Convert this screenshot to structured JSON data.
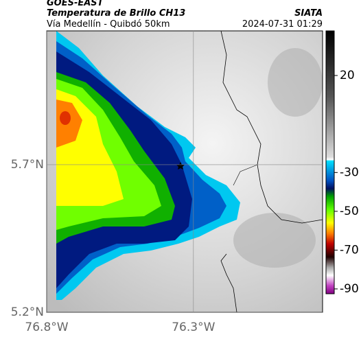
{
  "header": {
    "satellite": "GOES-EAST",
    "product": "Temperatura de Brillo CH13",
    "route": "Vía Medellín - Quibdó 50km",
    "source": "SIATA",
    "datetime": "2024-07-31 01:29"
  },
  "map": {
    "ylim": [
      5.2,
      6.153
    ],
    "xlim": [
      -76.8,
      -75.86
    ],
    "lat_ticks": [
      {
        "value": 5.7,
        "label": "5.7°N"
      },
      {
        "value": 5.2,
        "label": "5.2°N"
      }
    ],
    "lon_ticks": [
      {
        "value": -76.8,
        "label": "76.8°W"
      },
      {
        "value": -76.3,
        "label": "76.3°W"
      }
    ],
    "colorbar": {
      "lim": [
        -92.5,
        43
      ],
      "ticks": [
        20,
        -30,
        -50,
        -70,
        -90
      ]
    }
  }
}
